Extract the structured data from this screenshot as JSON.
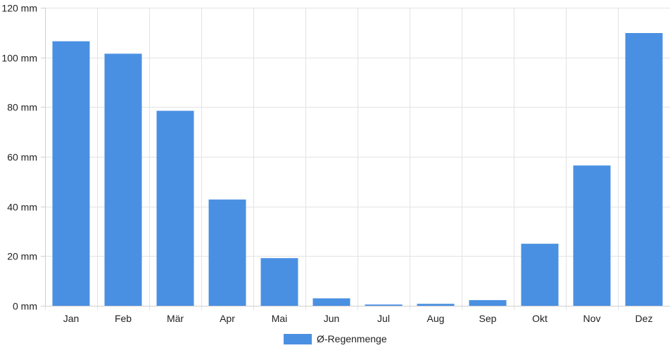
{
  "chart_data": {
    "type": "bar",
    "categories": [
      "Jan",
      "Feb",
      "Mär",
      "Apr",
      "Mai",
      "Jun",
      "Jul",
      "Aug",
      "Sep",
      "Okt",
      "Nov",
      "Dez"
    ],
    "series": [
      {
        "name": "Ø-Regenmenge",
        "color": "#4a90e2",
        "values": [
          106.5,
          101.5,
          78.5,
          42.8,
          19.2,
          3.0,
          0.5,
          0.8,
          2.3,
          25.0,
          56.5,
          109.8
        ]
      }
    ],
    "ylim": [
      0,
      120
    ],
    "yticks": [
      0,
      20,
      40,
      60,
      80,
      100,
      120
    ],
    "y_tick_suffix": " mm",
    "grid": true,
    "legend_position": "bottom"
  }
}
